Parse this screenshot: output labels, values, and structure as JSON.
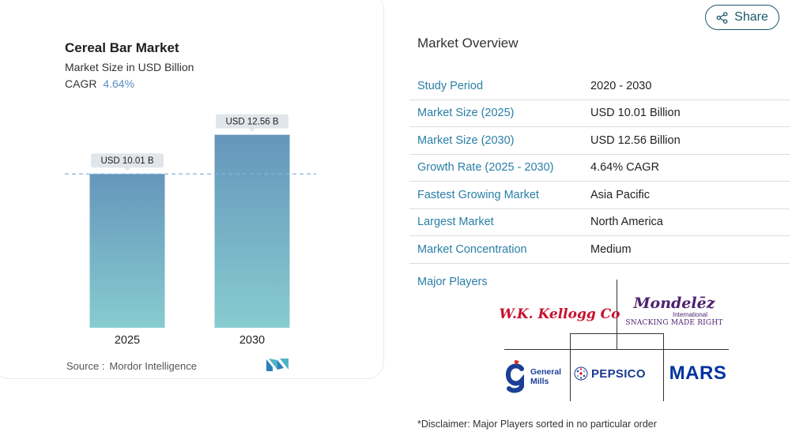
{
  "chart_data": {
    "type": "bar",
    "title": "Cereal Bar Market",
    "subtitle": "Market Size in USD Billion",
    "cagr_label": "CAGR",
    "cagr_value": "4.64%",
    "categories": [
      "2025",
      "2030"
    ],
    "values": [
      10.01,
      12.56
    ],
    "data_labels": [
      "USD 10.01 B",
      "USD 12.56 B"
    ],
    "ylim": [
      0,
      13.5
    ],
    "reference_line_value": 10.01,
    "bar_gradient": {
      "top": "#6596bb",
      "bottom": "#87ccd0"
    },
    "grid": false
  },
  "source": {
    "label": "Source :",
    "value": "Mordor Intelligence"
  },
  "share": {
    "label": "Share",
    "icon": "share-icon"
  },
  "overview": {
    "title": "Market Overview",
    "rows": [
      {
        "label": "Study Period",
        "value": "2020 - 2030"
      },
      {
        "label": "Market Size (2025)",
        "value": "USD 10.01 Billion"
      },
      {
        "label": "Market Size (2030)",
        "value": "USD 12.56 Billion"
      },
      {
        "label": "Growth Rate (2025 - 2030)",
        "value": "4.64% CAGR"
      },
      {
        "label": "Fastest Growing Market",
        "value": "Asia Pacific"
      },
      {
        "label": "Largest Market",
        "value": "North America"
      },
      {
        "label": "Market Concentration",
        "value": "Medium"
      }
    ]
  },
  "players": {
    "title": "Major Players",
    "logos": [
      {
        "name": "Kellogg",
        "text": "W.K. Kellogg Co",
        "color": "#c8102e"
      },
      {
        "name": "Mondelez",
        "text": "Mondelēz",
        "sub1": "International",
        "sub2": "SNACKING MADE RIGHT",
        "color": "#4f2170"
      },
      {
        "name": "General Mills",
        "text1": "General",
        "text2": "Mills",
        "color": "#1b3f95"
      },
      {
        "name": "PepsiCo",
        "text": "PEPSICO",
        "color": "#1a3a8f"
      },
      {
        "name": "Mars",
        "text": "MARS",
        "color": "#0033a0"
      }
    ]
  },
  "disclaimer": "*Disclaimer: Major Players sorted in no particular order",
  "colors": {
    "accent": "#2a7fa6",
    "cagr": "#5b8fc4",
    "dashed_line": "#8bb3d9"
  }
}
